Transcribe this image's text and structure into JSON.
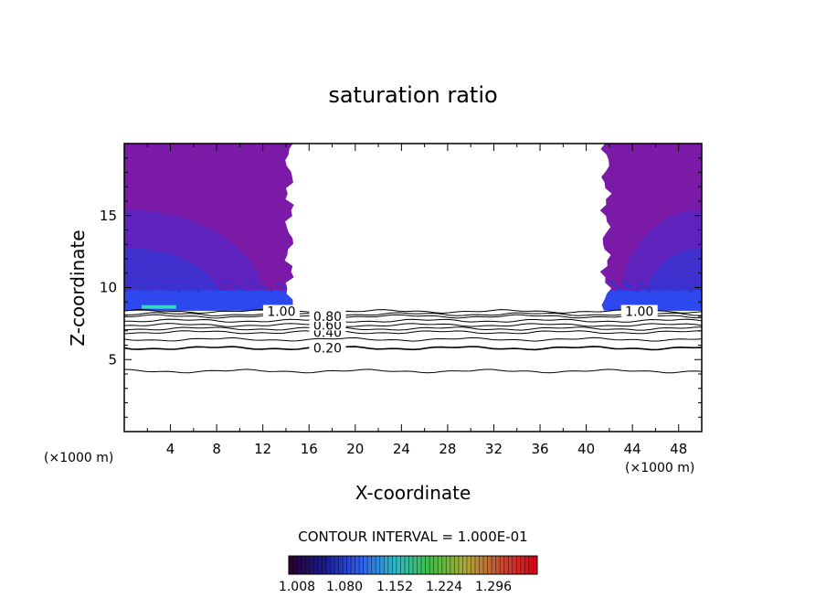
{
  "chart_data": {
    "type": "heatmap",
    "title": "saturation ratio",
    "xlabel": "X-coordinate",
    "ylabel": "Z-coordinate",
    "x_units": "(×1000 m)",
    "y_units": "(×1000 m)",
    "xlim": [
      0,
      50
    ],
    "ylim": [
      0,
      20
    ],
    "x_ticks": [
      "4",
      "8",
      "12",
      "16",
      "20",
      "24",
      "28",
      "32",
      "36",
      "40",
      "44",
      "48"
    ],
    "y_ticks": [
      "5",
      "10",
      "15"
    ],
    "contour_interval_label": "CONTOUR INTERVAL = 1.000E-01",
    "contour_lines": [
      {
        "level": "0.20",
        "z": 5.8
      },
      {
        "level": "0.40",
        "z": 6.9
      },
      {
        "level": "0.60",
        "z": 7.4
      },
      {
        "level": "0.80",
        "z": 8.0
      },
      {
        "level": "1.00",
        "z": 8.35
      }
    ],
    "contour_lines_unlabeled": [
      {
        "level": 0.1,
        "z": 4.2
      },
      {
        "level": 0.3,
        "z": 6.4
      },
      {
        "level": 0.5,
        "z": 7.15
      },
      {
        "level": 0.7,
        "z": 7.7
      },
      {
        "level": 0.9,
        "z": 8.15
      }
    ],
    "shaded_regions": [
      {
        "x_range": [
          0,
          14.3
        ],
        "z_range": [
          8.4,
          20
        ]
      },
      {
        "x_range": [
          41.7,
          50
        ],
        "z_range": [
          8.4,
          20
        ]
      }
    ],
    "colorbar": {
      "tick_labels": [
        "1.008",
        "1.080",
        "1.152",
        "1.224",
        "1.296"
      ],
      "range": [
        1.008,
        1.3
      ],
      "colors": [
        "#2a0030",
        "#1a1a8c",
        "#2f5cf0",
        "#2fb8c8",
        "#3fc040",
        "#b0a838",
        "#c84a30",
        "#d80018"
      ]
    },
    "region_colors": {
      "upper": "#7a1aa6",
      "mid": "#3d32cf",
      "base": "#2c48ee",
      "cyan": "#33d6c8"
    }
  }
}
